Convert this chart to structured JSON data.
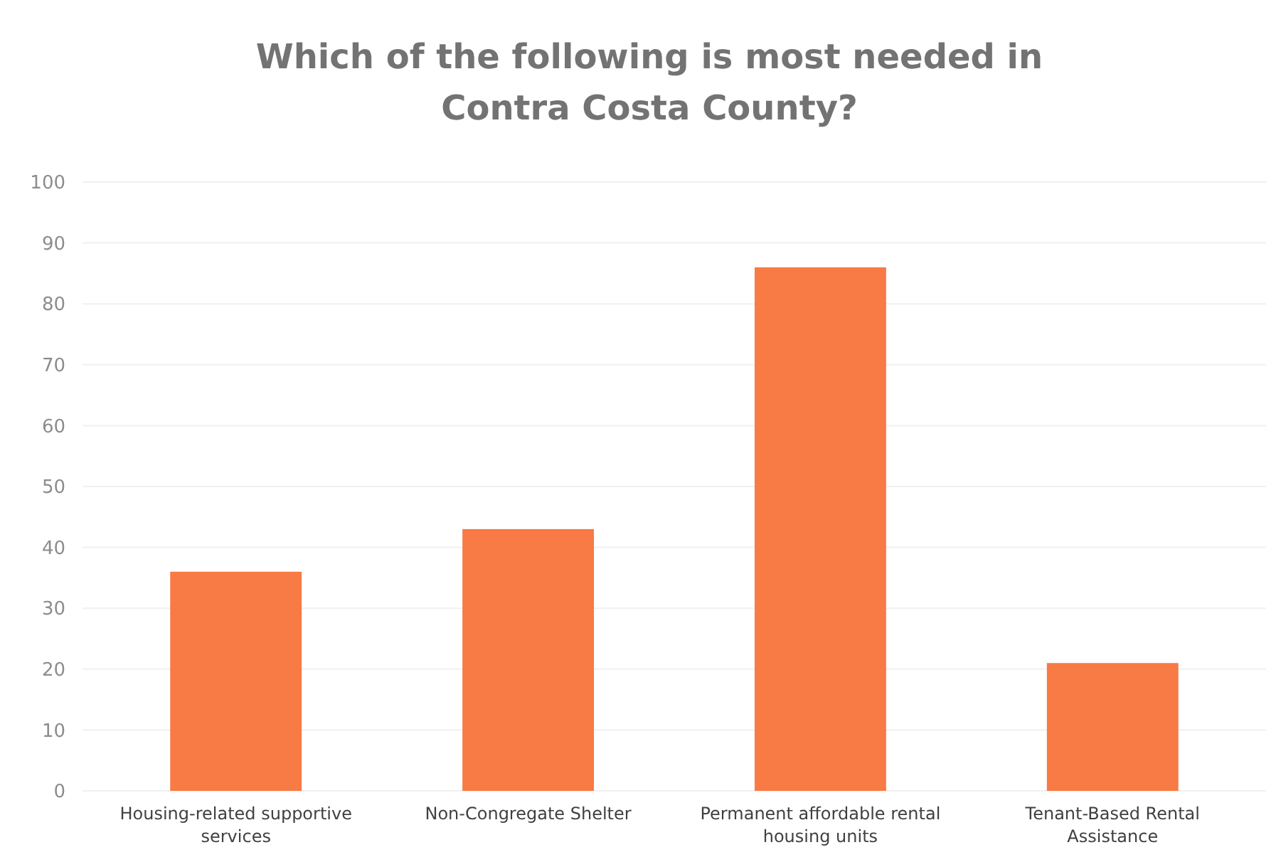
{
  "chart_data": {
    "type": "bar",
    "title": "Which of the following is most needed in Contra Costa County?",
    "categories": [
      "Housing-related supportive services",
      "Non-Congregate Shelter",
      "Permanent affordable rental housing units",
      "Tenant-Based Rental Assistance"
    ],
    "values": [
      36,
      43,
      86,
      21
    ],
    "color": "#f87a45",
    "ylim": [
      0,
      100
    ],
    "yticks": [
      0,
      10,
      20,
      30,
      40,
      50,
      60,
      70,
      80,
      90,
      100
    ],
    "grid": true
  }
}
